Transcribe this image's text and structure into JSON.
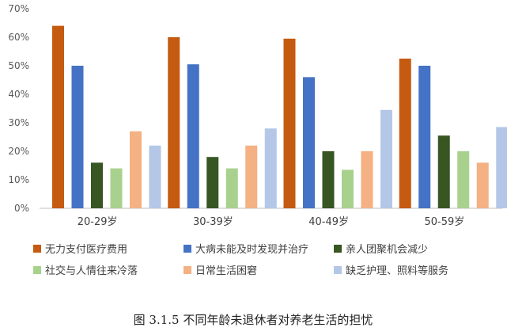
{
  "chart_data": {
    "type": "bar",
    "categories": [
      "20-29岁",
      "30-39岁",
      "40-49岁",
      "50-59岁"
    ],
    "series": [
      {
        "name": "无力支付医疗费用",
        "color": "#C55A11",
        "values": [
          64,
          60,
          59.5,
          52.5
        ]
      },
      {
        "name": "大病未能及时发现并治疗",
        "color": "#4472C4",
        "values": [
          50,
          50.5,
          46,
          50
        ]
      },
      {
        "name": "亲人团聚机会减少",
        "color": "#375623",
        "values": [
          16,
          18,
          20,
          25.5
        ]
      },
      {
        "name": "社交与人情往来冷落",
        "color": "#A9D18E",
        "values": [
          14,
          14,
          13.5,
          20
        ]
      },
      {
        "name": "日常生活困窘",
        "color": "#F4B183",
        "values": [
          27,
          22,
          20,
          16
        ]
      },
      {
        "name": "缺乏护理、照料等服务",
        "color": "#B4C7E7",
        "values": [
          22,
          28,
          34.5,
          28.5
        ]
      }
    ],
    "yticks": [
      "0%",
      "10%",
      "20%",
      "30%",
      "40%",
      "50%",
      "60%",
      "70%"
    ],
    "ylim": [
      0,
      70
    ],
    "grid": false,
    "legend_position": "bottom",
    "caption": "图 3.1.5  不同年龄未退休者对养老生活的担忧"
  }
}
